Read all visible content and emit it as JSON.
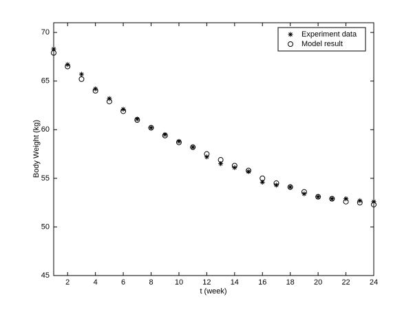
{
  "chart_data": {
    "type": "scatter",
    "x_label": "t (week)",
    "y_label": "Body Weight (kg)",
    "x": [
      1,
      2,
      3,
      4,
      5,
      6,
      7,
      8,
      9,
      10,
      11,
      12,
      13,
      14,
      15,
      16,
      17,
      18,
      19,
      20,
      21,
      22,
      23,
      24
    ],
    "series": [
      {
        "name": "Experiment data",
        "color": "#000000",
        "marker": "*",
        "values": [
          68.3,
          66.7,
          65.7,
          64.2,
          63.2,
          62.1,
          61.1,
          60.2,
          59.5,
          58.8,
          58.2,
          57.2,
          56.5,
          56.1,
          55.7,
          54.6,
          54.3,
          54.1,
          53.4,
          53.1,
          52.9,
          52.9,
          52.7,
          52.6
        ]
      },
      {
        "name": "Model result",
        "color": "#000000",
        "marker": "o",
        "values": [
          67.9,
          66.5,
          65.2,
          64.0,
          62.9,
          61.9,
          61.0,
          60.2,
          59.4,
          58.7,
          58.2,
          57.5,
          56.9,
          56.3,
          55.8,
          55.0,
          54.5,
          54.1,
          53.6,
          53.1,
          52.9,
          52.6,
          52.5,
          52.3
        ]
      }
    ],
    "xlim": [
      1,
      24
    ],
    "xticks": [
      2,
      4,
      6,
      8,
      10,
      12,
      14,
      16,
      18,
      20,
      22,
      24
    ],
    "ylim": [
      45,
      71
    ],
    "yticks": [
      45,
      50,
      55,
      60,
      65,
      70
    ],
    "grid": false,
    "legend": "upper right"
  }
}
